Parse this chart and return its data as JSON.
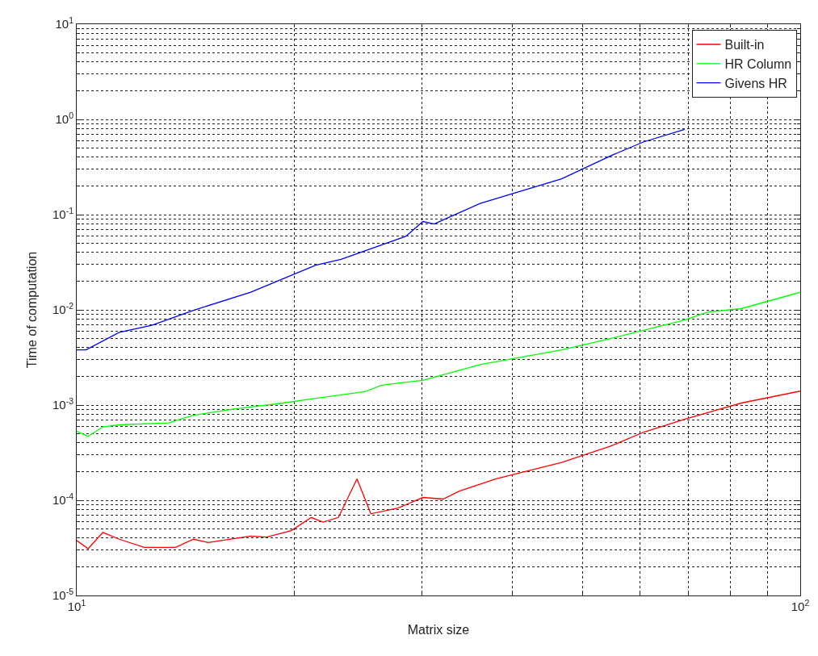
{
  "chart_data": {
    "type": "line",
    "xlabel": "Matrix size",
    "ylabel": "Time of computation",
    "log": "xy",
    "grid": true,
    "legend": "top right",
    "line_style": "solid",
    "marker": "none",
    "xlim": [
      10,
      100
    ],
    "xticks": [
      {
        "value": 10,
        "label": "10$^{1}$"
      },
      {
        "value": 100,
        "label": "10$^{2}$"
      }
    ],
    "ylim": [
      1e-05,
      10
    ],
    "yticks": [
      {
        "value": 1e-05,
        "label": "10$^{-5}$"
      },
      {
        "value": 0.0001,
        "label": "10$^{-4}$"
      },
      {
        "value": 0.001,
        "label": "10$^{-3}$"
      },
      {
        "value": 0.01,
        "label": "10$^{-2}$"
      },
      {
        "value": 0.1,
        "label": "10$^{-1}$"
      },
      {
        "value": 1,
        "label": "10$^{0}$"
      },
      {
        "value": 10,
        "label": "10$^{1}$"
      }
    ],
    "series": [
      {
        "name": "Built-in",
        "color": "#ff0000",
        "x": [
          10,
          10.37,
          10.87,
          11.45,
          12.4,
          13.7,
          14.5,
          15.2,
          17.4,
          18.3,
          19.8,
          21.1,
          21.9,
          23.0,
          24.4,
          25.5,
          27.8,
          30.1,
          32.1,
          33.8,
          38.0,
          46.8,
          54.7,
          60.8,
          69.2,
          82.9,
          100
        ],
        "values": [
          3.78e-05,
          3.1e-05,
          4.6e-05,
          3.9e-05,
          3.2e-05,
          3.2e-05,
          3.9e-05,
          3.6e-05,
          4.2e-05,
          4.1e-05,
          4.8e-05,
          6.6e-05,
          5.9e-05,
          6.6e-05,
          0.000168,
          7.2e-05,
          8.3e-05,
          0.000107,
          0.000103,
          0.000125,
          0.000168,
          0.00025,
          0.00037,
          0.00052,
          0.00071,
          0.00105,
          0.0014
        ]
      },
      {
        "name": "HR Column",
        "color": "#00ff00",
        "x": [
          10,
          10.37,
          10.87,
          11.45,
          13.4,
          14.5,
          16.5,
          19.3,
          21.4,
          25.0,
          26.4,
          30.1,
          36.1,
          46.8,
          54.7,
          69.2,
          74.6,
          82.9,
          100
        ],
        "values": [
          0.00053,
          0.00047,
          0.00059,
          0.00062,
          0.00065,
          0.00078,
          0.00091,
          0.00105,
          0.00118,
          0.00138,
          0.00162,
          0.00182,
          0.00266,
          0.0038,
          0.005,
          0.0078,
          0.0095,
          0.0103,
          0.0153
        ]
      },
      {
        "name": "Givens HR",
        "color": "#0000ff",
        "x": [
          10,
          10.3,
          11.45,
          12.7,
          14.5,
          17.4,
          21.4,
          23.2,
          28.5,
          30.1,
          31.2,
          32.5,
          36.1,
          46.8,
          54.7,
          60.8,
          69.2
        ],
        "values": [
          0.0038,
          0.0038,
          0.0058,
          0.0069,
          0.0099,
          0.0153,
          0.0295,
          0.0339,
          0.0592,
          0.0846,
          0.0798,
          0.0917,
          0.131,
          0.238,
          0.415,
          0.582,
          0.785
        ]
      }
    ]
  }
}
